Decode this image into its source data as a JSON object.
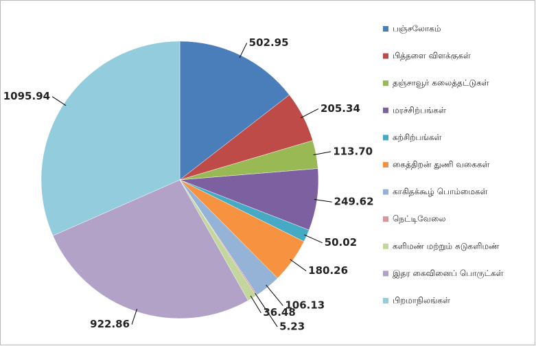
{
  "chart_data": {
    "type": "pie",
    "categories": [
      "பஞ்சலோகம்",
      "பித்தளை விளக்குகள்",
      "தஞ்சாவூர் கலைத்தட்டுகள்",
      "மரச்சிற்பங்கள்",
      "கற்சிற்பங்கள்",
      "கைத்திறன் துணி வகைகள்",
      "காகிதக்கூழ் பொம்மைகள்",
      "நெட்டிவேலை",
      "களிமண் மற்றும் சுடுகளிமண்",
      "இதர கைவினைப் பொருட்கள்",
      "பிறமாநிலங்கள்"
    ],
    "values": [
      502.95,
      205.34,
      113.7,
      249.62,
      50.02,
      180.26,
      106.13,
      5.23,
      36.48,
      922.86,
      1095.94
    ],
    "value_labels": [
      "502.95",
      "205.34",
      "113.70",
      "249.62",
      "50.02",
      "180.26",
      "106.13",
      "5.23",
      "36.48",
      "922.86",
      "1095.94"
    ],
    "colors": [
      "#4a7ebb",
      "#be4b48",
      "#98b954",
      "#7d60a0",
      "#46aac4",
      "#f69240",
      "#95b3d7",
      "#d99694",
      "#c3d69b",
      "#b3a2c7",
      "#93cddd"
    ],
    "legend": "right"
  }
}
